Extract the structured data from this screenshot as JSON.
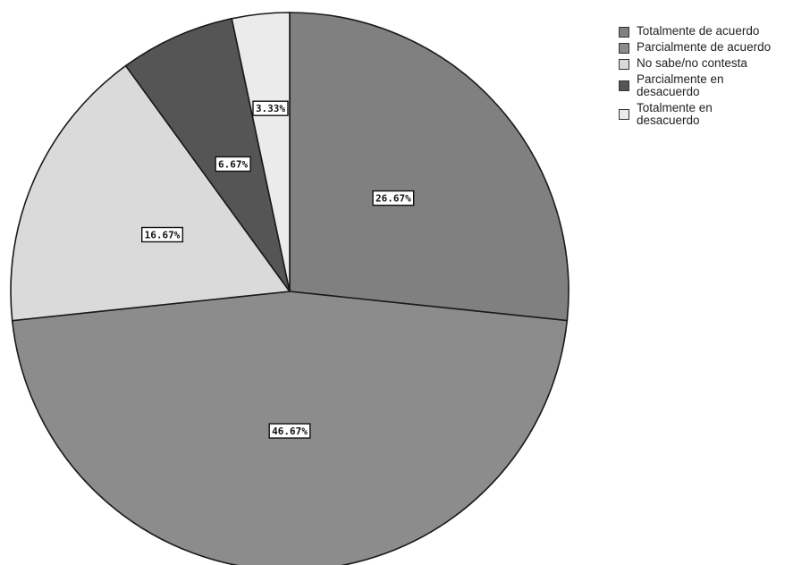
{
  "chart_data": {
    "type": "pie",
    "categories": [
      "Totalmente de acuerdo",
      "Parcialmente de acuerdo",
      "No sabe/no contesta",
      "Parcialmente en desacuerdo",
      "Totalmente en desacuerdo"
    ],
    "values": [
      26.67,
      46.67,
      16.67,
      6.67,
      3.33
    ],
    "data_labels": [
      "26.67%",
      "46.67%",
      "16.67%",
      "6.67%",
      "3.33%"
    ],
    "legend_labels": [
      [
        "Totalmente de acuerdo"
      ],
      [
        "Parcialmente de acuerdo"
      ],
      [
        "No sabe/no contesta"
      ],
      [
        "Parcialmente en",
        "desacuerdo"
      ],
      [
        "Totalmente en",
        "desacuerdo"
      ]
    ],
    "slice_colors": [
      "#808080",
      "#8c8c8c",
      "#dadada",
      "#555555",
      "#ebebeb"
    ],
    "start_angle_deg": 0,
    "direction": "clockwise",
    "legend_position": "top-right"
  }
}
